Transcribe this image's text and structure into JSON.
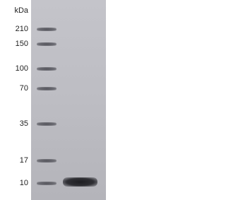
{
  "unit_label": "kDa",
  "markers": [
    {
      "label": "210"
    },
    {
      "label": "150"
    },
    {
      "label": "100"
    },
    {
      "label": "70"
    },
    {
      "label": "35"
    },
    {
      "label": "17"
    },
    {
      "label": "10"
    }
  ]
}
